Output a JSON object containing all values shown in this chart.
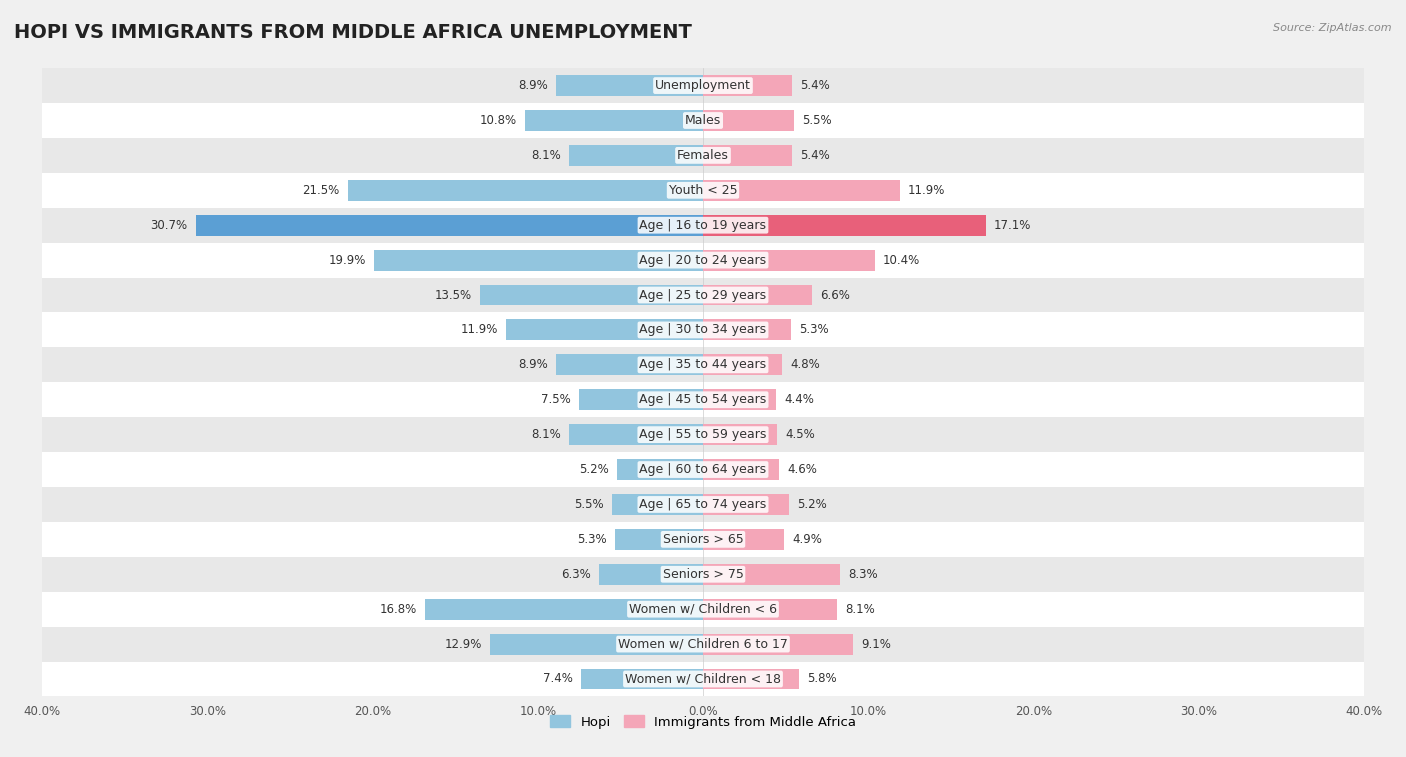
{
  "title": "HOPI VS IMMIGRANTS FROM MIDDLE AFRICA UNEMPLOYMENT",
  "source": "Source: ZipAtlas.com",
  "categories": [
    "Unemployment",
    "Males",
    "Females",
    "Youth < 25",
    "Age | 16 to 19 years",
    "Age | 20 to 24 years",
    "Age | 25 to 29 years",
    "Age | 30 to 34 years",
    "Age | 35 to 44 years",
    "Age | 45 to 54 years",
    "Age | 55 to 59 years",
    "Age | 60 to 64 years",
    "Age | 65 to 74 years",
    "Seniors > 65",
    "Seniors > 75",
    "Women w/ Children < 6",
    "Women w/ Children 6 to 17",
    "Women w/ Children < 18"
  ],
  "hopi_values": [
    8.9,
    10.8,
    8.1,
    21.5,
    30.7,
    19.9,
    13.5,
    11.9,
    8.9,
    7.5,
    8.1,
    5.2,
    5.5,
    5.3,
    6.3,
    16.8,
    12.9,
    7.4
  ],
  "immigrant_values": [
    5.4,
    5.5,
    5.4,
    11.9,
    17.1,
    10.4,
    6.6,
    5.3,
    4.8,
    4.4,
    4.5,
    4.6,
    5.2,
    4.9,
    8.3,
    8.1,
    9.1,
    5.8
  ],
  "hopi_color": "#92c5de",
  "immigrant_color": "#f4a6b8",
  "hopi_highlight_color": "#5b9fd4",
  "immigrant_highlight_color": "#e8607a",
  "axis_limit": 40.0,
  "legend_hopi": "Hopi",
  "legend_immigrant": "Immigrants from Middle Africa",
  "bg_color": "#f0f0f0",
  "row_bg_light": "#ffffff",
  "row_bg_dark": "#e8e8e8",
  "title_fontsize": 14,
  "label_fontsize": 9,
  "value_fontsize": 8.5
}
